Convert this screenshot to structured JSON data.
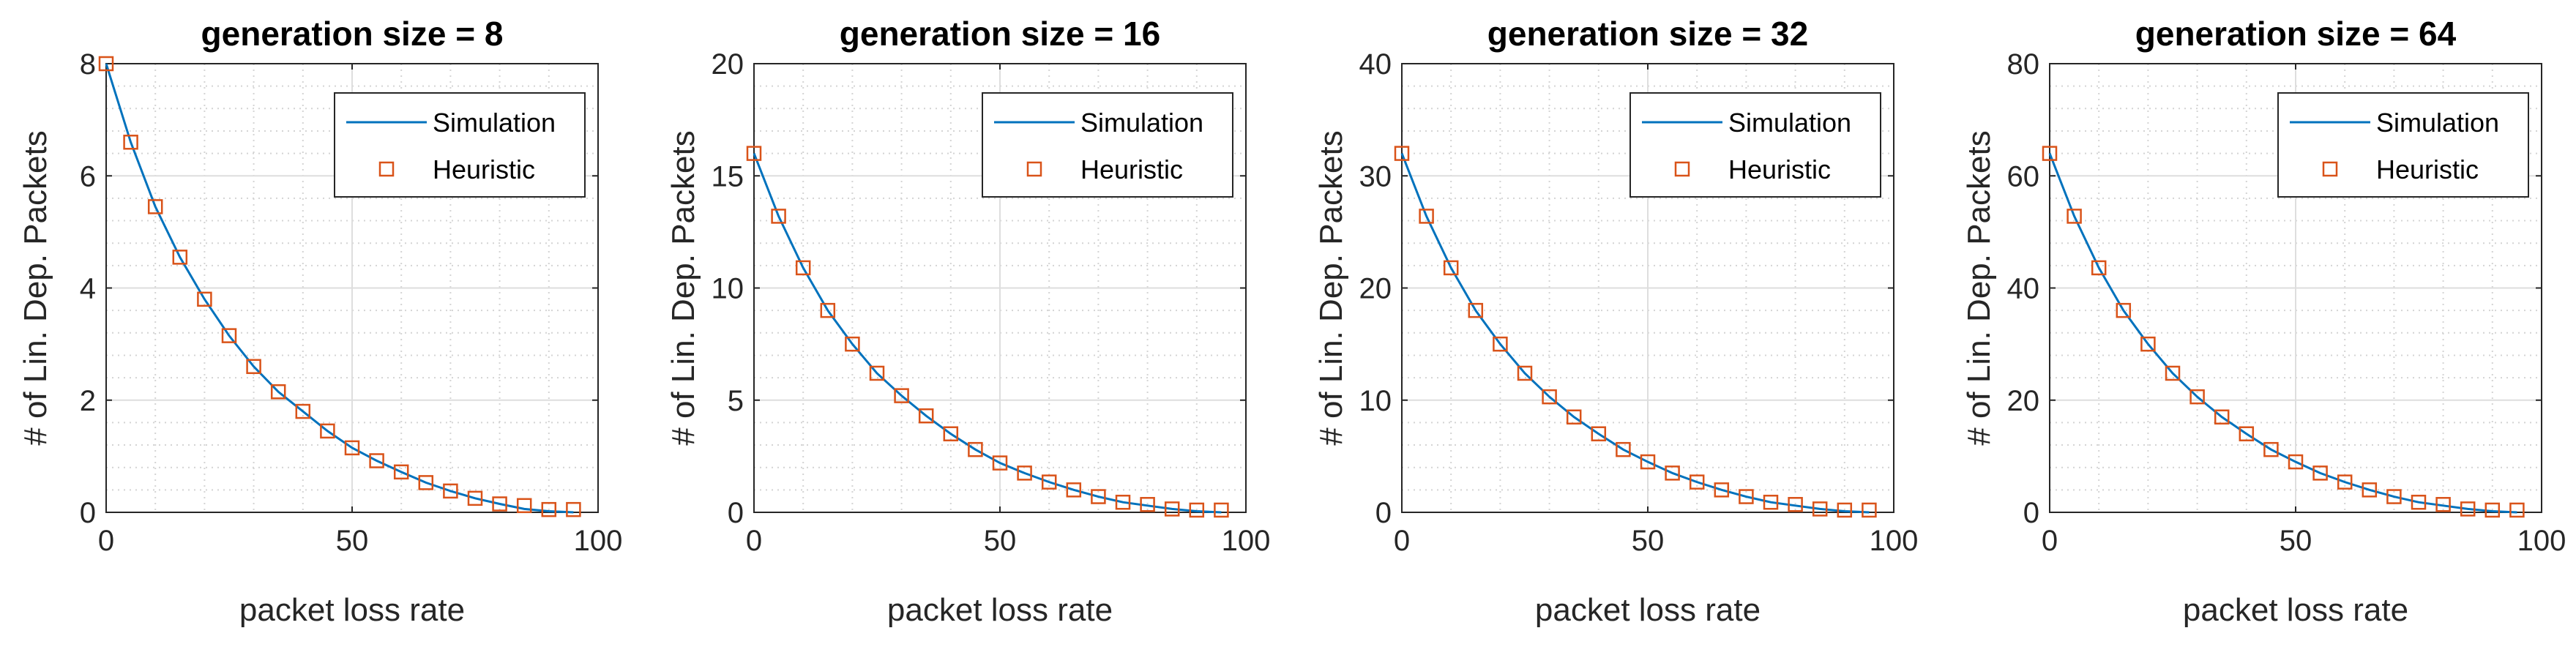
{
  "chart_data": [
    {
      "type": "line",
      "title": "generation size = 8",
      "xlabel": "packet loss rate",
      "ylabel": "# of Lin. Dep. Packets",
      "xlim": [
        0,
        100
      ],
      "ylim": [
        0,
        8
      ],
      "xticks": [
        "0",
        "50",
        "100"
      ],
      "yticks": [
        "0",
        "2",
        "4",
        "6",
        "8"
      ],
      "grid": "major and minor",
      "legend_position": "top-right",
      "series": [
        {
          "name": "Simulation",
          "style": "line",
          "color": "#0072BD",
          "x": [
            0,
            5,
            10,
            15,
            20,
            25,
            30,
            35,
            40,
            45,
            50,
            55,
            60,
            65,
            70,
            75,
            80,
            85,
            90,
            95
          ],
          "y": [
            8.0,
            6.6,
            5.45,
            4.55,
            3.8,
            3.15,
            2.6,
            2.15,
            1.8,
            1.45,
            1.15,
            0.92,
            0.72,
            0.53,
            0.38,
            0.25,
            0.15,
            0.06,
            0.02,
            0.0
          ]
        },
        {
          "name": "Heuristic",
          "style": "square-markers",
          "color": "#D95319",
          "x": [
            0,
            5,
            10,
            15,
            20,
            25,
            30,
            35,
            40,
            45,
            50,
            55,
            60,
            65,
            70,
            75,
            80,
            85,
            90,
            95
          ],
          "y": [
            8.0,
            6.6,
            5.45,
            4.55,
            3.8,
            3.15,
            2.6,
            2.15,
            1.8,
            1.45,
            1.15,
            0.92,
            0.72,
            0.53,
            0.38,
            0.25,
            0.15,
            0.12,
            0.05,
            0.05
          ]
        }
      ]
    },
    {
      "type": "line",
      "title": "generation size = 16",
      "xlabel": "packet loss rate",
      "ylabel": "# of Lin. Dep. Packets",
      "xlim": [
        0,
        100
      ],
      "ylim": [
        0,
        20
      ],
      "xticks": [
        "0",
        "50",
        "100"
      ],
      "yticks": [
        "0",
        "5",
        "10",
        "15",
        "20"
      ],
      "grid": "major and minor",
      "legend_position": "top-right",
      "series": [
        {
          "name": "Simulation",
          "style": "line",
          "color": "#0072BD",
          "x": [
            0,
            5,
            10,
            15,
            20,
            25,
            30,
            35,
            40,
            45,
            50,
            55,
            60,
            65,
            70,
            75,
            80,
            85,
            90,
            95
          ],
          "y": [
            16.0,
            13.2,
            10.9,
            9.0,
            7.5,
            6.2,
            5.2,
            4.3,
            3.5,
            2.8,
            2.2,
            1.75,
            1.35,
            1.0,
            0.7,
            0.45,
            0.3,
            0.15,
            0.05,
            0.0
          ]
        },
        {
          "name": "Heuristic",
          "style": "square-markers",
          "color": "#D95319",
          "x": [
            0,
            5,
            10,
            15,
            20,
            25,
            30,
            35,
            40,
            45,
            50,
            55,
            60,
            65,
            70,
            75,
            80,
            85,
            90,
            95
          ],
          "y": [
            16.0,
            13.2,
            10.9,
            9.0,
            7.5,
            6.2,
            5.2,
            4.3,
            3.5,
            2.8,
            2.2,
            1.75,
            1.35,
            1.0,
            0.7,
            0.45,
            0.35,
            0.15,
            0.1,
            0.1
          ]
        }
      ]
    },
    {
      "type": "line",
      "title": "generation size = 32",
      "xlabel": "packet loss rate",
      "ylabel": "# of Lin. Dep. Packets",
      "xlim": [
        0,
        100
      ],
      "ylim": [
        0,
        40
      ],
      "xticks": [
        "0",
        "50",
        "100"
      ],
      "yticks": [
        "0",
        "10",
        "20",
        "30",
        "40"
      ],
      "grid": "major and minor",
      "legend_position": "top-right",
      "series": [
        {
          "name": "Simulation",
          "style": "line",
          "color": "#0072BD",
          "x": [
            0,
            5,
            10,
            15,
            20,
            25,
            30,
            35,
            40,
            45,
            50,
            55,
            60,
            65,
            70,
            75,
            80,
            85,
            90,
            95
          ],
          "y": [
            32.0,
            26.4,
            21.8,
            18.0,
            15.0,
            12.4,
            10.3,
            8.5,
            7.0,
            5.6,
            4.5,
            3.5,
            2.7,
            2.0,
            1.4,
            0.9,
            0.6,
            0.3,
            0.1,
            0.0
          ]
        },
        {
          "name": "Heuristic",
          "style": "square-markers",
          "color": "#D95319",
          "x": [
            0,
            5,
            10,
            15,
            20,
            25,
            30,
            35,
            40,
            45,
            50,
            55,
            60,
            65,
            70,
            75,
            80,
            85,
            90,
            95
          ],
          "y": [
            32.0,
            26.4,
            21.8,
            18.0,
            15.0,
            12.4,
            10.3,
            8.5,
            7.0,
            5.6,
            4.5,
            3.5,
            2.7,
            2.0,
            1.4,
            0.9,
            0.7,
            0.3,
            0.2,
            0.2
          ]
        }
      ]
    },
    {
      "type": "line",
      "title": "generation size = 64",
      "xlabel": "packet loss rate",
      "ylabel": "# of Lin. Dep. Packets",
      "xlim": [
        0,
        100
      ],
      "ylim": [
        0,
        80
      ],
      "xticks": [
        "0",
        "50",
        "100"
      ],
      "yticks": [
        "0",
        "20",
        "40",
        "60",
        "80"
      ],
      "grid": "major and minor",
      "legend_position": "top-right",
      "series": [
        {
          "name": "Simulation",
          "style": "line",
          "color": "#0072BD",
          "x": [
            0,
            5,
            10,
            15,
            20,
            25,
            30,
            35,
            40,
            45,
            50,
            55,
            60,
            65,
            70,
            75,
            80,
            85,
            90,
            95
          ],
          "y": [
            64.0,
            52.8,
            43.6,
            36.0,
            30.0,
            24.8,
            20.6,
            17.0,
            14.0,
            11.2,
            9.0,
            7.0,
            5.4,
            4.0,
            2.8,
            1.8,
            1.2,
            0.6,
            0.2,
            0.0
          ]
        },
        {
          "name": "Heuristic",
          "style": "square-markers",
          "color": "#D95319",
          "x": [
            0,
            5,
            10,
            15,
            20,
            25,
            30,
            35,
            40,
            45,
            50,
            55,
            60,
            65,
            70,
            75,
            80,
            85,
            90,
            95
          ],
          "y": [
            64.0,
            52.8,
            43.6,
            36.0,
            30.0,
            24.8,
            20.6,
            17.0,
            14.0,
            11.2,
            9.0,
            7.0,
            5.4,
            4.0,
            2.8,
            1.8,
            1.4,
            0.6,
            0.4,
            0.4
          ]
        }
      ]
    }
  ]
}
